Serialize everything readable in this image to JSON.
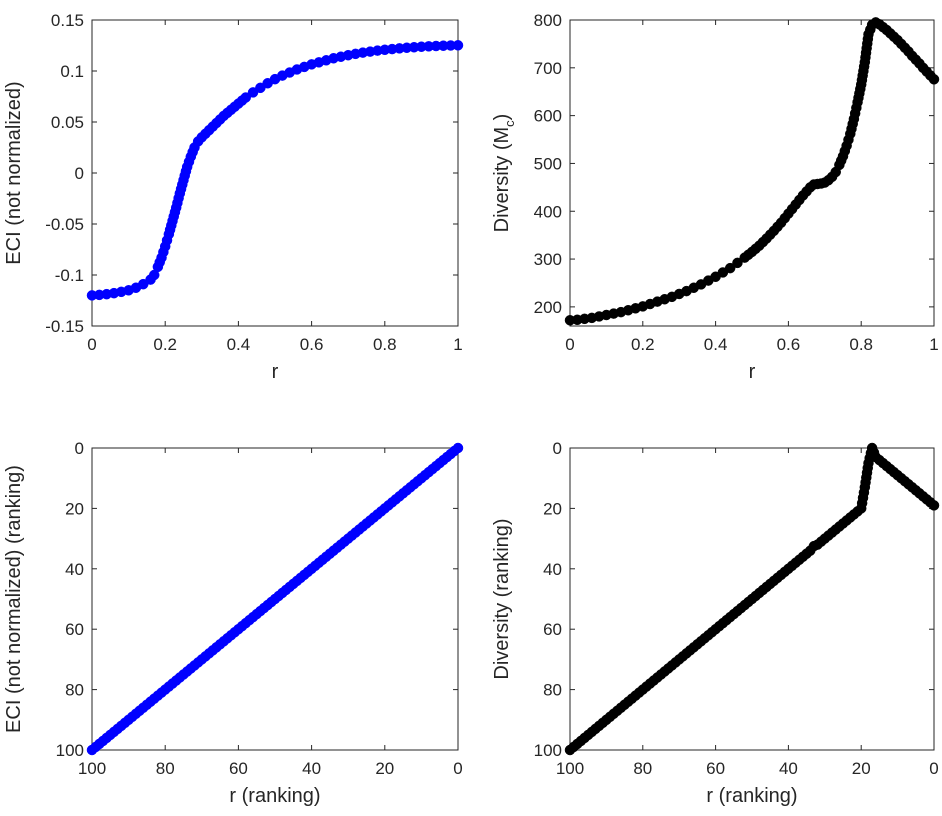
{
  "chart_data": [
    {
      "id": "eci",
      "type": "scatter",
      "xlabel": "r",
      "ylabel": "ECI (not normalized)",
      "xlim": [
        0,
        1
      ],
      "ylim": [
        -0.15,
        0.15
      ],
      "x_reversed": false,
      "y_reversed": false,
      "xticks": [
        0,
        0.2,
        0.4,
        0.6,
        0.8,
        1
      ],
      "xtick_labels": [
        "0",
        "0.2",
        "0.4",
        "0.6",
        "0.8",
        "1"
      ],
      "yticks": [
        -0.15,
        -0.1,
        -0.05,
        0,
        0.05,
        0.1,
        0.15
      ],
      "ytick_labels": [
        "-0.15",
        "-0.1",
        "-0.05",
        "0",
        "0.05",
        "0.1",
        "0.15"
      ],
      "marker_color": "#0000ff",
      "series": [
        {
          "name": "ECI",
          "points": [
            [
              0,
              -0.12
            ],
            [
              0.02,
              -0.1195
            ],
            [
              0.04,
              -0.1188
            ],
            [
              0.06,
              -0.1178
            ],
            [
              0.08,
              -0.1165
            ],
            [
              0.1,
              -0.115
            ],
            [
              0.12,
              -0.1125
            ],
            [
              0.14,
              -0.109
            ],
            [
              0.16,
              -0.1045
            ],
            [
              0.17,
              -0.1
            ],
            [
              0.18,
              -0.092
            ],
            [
              0.19,
              -0.083
            ],
            [
              0.2,
              -0.072
            ],
            [
              0.21,
              -0.06
            ],
            [
              0.22,
              -0.047
            ],
            [
              0.23,
              -0.034
            ],
            [
              0.24,
              -0.02
            ],
            [
              0.25,
              -0.007
            ],
            [
              0.26,
              0.006
            ],
            [
              0.27,
              0.016
            ],
            [
              0.28,
              0.025
            ],
            [
              0.29,
              0.031
            ],
            [
              0.3,
              0.035
            ],
            [
              0.32,
              0.042
            ],
            [
              0.34,
              0.049
            ],
            [
              0.36,
              0.056
            ],
            [
              0.38,
              0.062
            ],
            [
              0.4,
              0.068
            ],
            [
              0.42,
              0.074
            ],
            [
              0.44,
              0.079
            ],
            [
              0.46,
              0.0835
            ],
            [
              0.48,
              0.088
            ],
            [
              0.5,
              0.092
            ],
            [
              0.52,
              0.0955
            ],
            [
              0.54,
              0.0985
            ],
            [
              0.56,
              0.1015
            ],
            [
              0.58,
              0.104
            ],
            [
              0.6,
              0.1065
            ],
            [
              0.62,
              0.1085
            ],
            [
              0.64,
              0.1105
            ],
            [
              0.66,
              0.1125
            ],
            [
              0.68,
              0.114
            ],
            [
              0.7,
              0.1155
            ],
            [
              0.72,
              0.1168
            ],
            [
              0.74,
              0.118
            ],
            [
              0.76,
              0.119
            ],
            [
              0.78,
              0.12
            ],
            [
              0.8,
              0.1208
            ],
            [
              0.82,
              0.1215
            ],
            [
              0.84,
              0.1222
            ],
            [
              0.86,
              0.1228
            ],
            [
              0.88,
              0.1233
            ],
            [
              0.9,
              0.1238
            ],
            [
              0.92,
              0.1242
            ],
            [
              0.94,
              0.1245
            ],
            [
              0.96,
              0.1248
            ],
            [
              0.98,
              0.125
            ],
            [
              1,
              0.1252
            ]
          ]
        }
      ]
    },
    {
      "id": "diversity",
      "type": "scatter",
      "xlabel": "r",
      "ylabel": "Diversity (M",
      "ylabel_subscript": "c",
      "ylabel_suffix": ")",
      "xlim": [
        0,
        1
      ],
      "ylim": [
        160,
        800
      ],
      "x_reversed": false,
      "y_reversed": false,
      "xticks": [
        0,
        0.2,
        0.4,
        0.6,
        0.8,
        1
      ],
      "xtick_labels": [
        "0",
        "0.2",
        "0.4",
        "0.6",
        "0.8",
        "1"
      ],
      "yticks": [
        200,
        300,
        400,
        500,
        600,
        700,
        800
      ],
      "ytick_labels": [
        "200",
        "300",
        "400",
        "500",
        "600",
        "700",
        "800"
      ],
      "marker_color": "#000000",
      "series": [
        {
          "name": "Diversity",
          "points": [
            [
              0,
              172
            ],
            [
              0.02,
              173
            ],
            [
              0.04,
              175
            ],
            [
              0.06,
              177
            ],
            [
              0.08,
              180
            ],
            [
              0.1,
              183
            ],
            [
              0.12,
              186
            ],
            [
              0.14,
              189
            ],
            [
              0.16,
              193
            ],
            [
              0.18,
              197
            ],
            [
              0.2,
              201
            ],
            [
              0.22,
              206
            ],
            [
              0.24,
              211
            ],
            [
              0.26,
              216
            ],
            [
              0.28,
              221
            ],
            [
              0.3,
              227
            ],
            [
              0.32,
              233
            ],
            [
              0.34,
              240
            ],
            [
              0.36,
              247
            ],
            [
              0.38,
              255
            ],
            [
              0.4,
              263
            ],
            [
              0.42,
              272
            ],
            [
              0.44,
              281
            ],
            [
              0.46,
              292
            ],
            [
              0.48,
              303
            ],
            [
              0.5,
              315
            ],
            [
              0.52,
              328
            ],
            [
              0.54,
              343
            ],
            [
              0.56,
              359
            ],
            [
              0.58,
              376
            ],
            [
              0.6,
              395
            ],
            [
              0.62,
              414
            ],
            [
              0.64,
              433
            ],
            [
              0.66,
              450
            ],
            [
              0.67,
              456
            ],
            [
              0.68,
              457
            ],
            [
              0.69,
              458
            ],
            [
              0.7,
              460
            ],
            [
              0.71,
              465
            ],
            [
              0.72,
              472
            ],
            [
              0.73,
              482
            ],
            [
              0.74,
              497
            ],
            [
              0.75,
              515
            ],
            [
              0.76,
              537
            ],
            [
              0.77,
              562
            ],
            [
              0.78,
              593
            ],
            [
              0.79,
              628
            ],
            [
              0.8,
              665
            ],
            [
              0.81,
              712
            ],
            [
              0.82,
              770
            ],
            [
              0.83,
              790
            ],
            [
              0.84,
              795
            ],
            [
              0.85,
              791
            ],
            [
              0.86,
              785
            ],
            [
              0.87,
              779
            ],
            [
              0.88,
              772
            ],
            [
              0.89,
              765
            ],
            [
              0.9,
              758
            ],
            [
              0.91,
              750
            ],
            [
              0.92,
              742
            ],
            [
              0.93,
              734
            ],
            [
              0.94,
              725
            ],
            [
              0.95,
              717
            ],
            [
              0.96,
              709
            ],
            [
              0.97,
              700
            ],
            [
              0.98,
              692
            ],
            [
              0.99,
              684
            ],
            [
              1,
              676
            ]
          ]
        }
      ]
    },
    {
      "id": "eci-ranking",
      "type": "scatter",
      "xlabel": "r (ranking)",
      "ylabel": "ECI (not normalized) (ranking)",
      "xlim": [
        0,
        100
      ],
      "ylim": [
        0,
        100
      ],
      "x_reversed": true,
      "y_reversed": true,
      "xticks": [
        100,
        80,
        60,
        40,
        20,
        0
      ],
      "xtick_labels": [
        "100",
        "80",
        "60",
        "40",
        "20",
        "0"
      ],
      "yticks": [
        0,
        20,
        40,
        60,
        80,
        100
      ],
      "ytick_labels": [
        "0",
        "20",
        "40",
        "60",
        "80",
        "100"
      ],
      "marker_color": "#0000ff",
      "series": [
        {
          "name": "ECI ranking",
          "points": [
            [
              0,
              0
            ],
            [
              2,
              2
            ],
            [
              4,
              4
            ],
            [
              6,
              6
            ],
            [
              8,
              8
            ],
            [
              10,
              10
            ],
            [
              12,
              12
            ],
            [
              14,
              14
            ],
            [
              16,
              16
            ],
            [
              18,
              18
            ],
            [
              20,
              20
            ],
            [
              22,
              22
            ],
            [
              24,
              24
            ],
            [
              26,
              26
            ],
            [
              28,
              28
            ],
            [
              30,
              30
            ],
            [
              32,
              32
            ],
            [
              34,
              34
            ],
            [
              36,
              36
            ],
            [
              38,
              38
            ],
            [
              40,
              40
            ],
            [
              42,
              42
            ],
            [
              44,
              44
            ],
            [
              46,
              46
            ],
            [
              48,
              48
            ],
            [
              50,
              50
            ],
            [
              52,
              52
            ],
            [
              54,
              54
            ],
            [
              56,
              56
            ],
            [
              58,
              58
            ],
            [
              60,
              60
            ],
            [
              62,
              62
            ],
            [
              64,
              64
            ],
            [
              66,
              66
            ],
            [
              68,
              68
            ],
            [
              70,
              70
            ],
            [
              72,
              72
            ],
            [
              74,
              74
            ],
            [
              76,
              76
            ],
            [
              78,
              78
            ],
            [
              80,
              80
            ],
            [
              82,
              82
            ],
            [
              84,
              84
            ],
            [
              86,
              86
            ],
            [
              88,
              88
            ],
            [
              90,
              90
            ],
            [
              92,
              92
            ],
            [
              94,
              94
            ],
            [
              96,
              96
            ],
            [
              98,
              98
            ],
            [
              100,
              100
            ]
          ]
        }
      ]
    },
    {
      "id": "diversity-ranking",
      "type": "scatter",
      "xlabel": "r (ranking)",
      "ylabel": "Diversity (ranking)",
      "xlim": [
        0,
        100
      ],
      "ylim": [
        0,
        100
      ],
      "x_reversed": true,
      "y_reversed": true,
      "xticks": [
        100,
        80,
        60,
        40,
        20,
        0
      ],
      "xtick_labels": [
        "100",
        "80",
        "60",
        "40",
        "20",
        "0"
      ],
      "yticks": [
        0,
        20,
        40,
        60,
        80,
        100
      ],
      "ytick_labels": [
        "0",
        "20",
        "40",
        "60",
        "80",
        "100"
      ],
      "marker_color": "#000000",
      "series": [
        {
          "name": "Diversity ranking",
          "points": [
            [
              0,
              19
            ],
            [
              1,
              18
            ],
            [
              2,
              17
            ],
            [
              3,
              16
            ],
            [
              4,
              15
            ],
            [
              5,
              14
            ],
            [
              6,
              13
            ],
            [
              7,
              12
            ],
            [
              8,
              11
            ],
            [
              9,
              10
            ],
            [
              10,
              9
            ],
            [
              11,
              8
            ],
            [
              12,
              7
            ],
            [
              13,
              6
            ],
            [
              14,
              5
            ],
            [
              15,
              4
            ],
            [
              16,
              3
            ],
            [
              17,
              0
            ],
            [
              18,
              5
            ],
            [
              19,
              13
            ],
            [
              20,
              20
            ],
            [
              22,
              22
            ],
            [
              24,
              24
            ],
            [
              26,
              26
            ],
            [
              28,
              28
            ],
            [
              30,
              30
            ],
            [
              32,
              32
            ],
            [
              33,
              32.5
            ],
            [
              34,
              34
            ],
            [
              36,
              36
            ],
            [
              38,
              38
            ],
            [
              40,
              40
            ],
            [
              42,
              42
            ],
            [
              44,
              44
            ],
            [
              46,
              46
            ],
            [
              48,
              48
            ],
            [
              50,
              50
            ],
            [
              52,
              52
            ],
            [
              54,
              54
            ],
            [
              56,
              56
            ],
            [
              58,
              58
            ],
            [
              60,
              60
            ],
            [
              62,
              62
            ],
            [
              64,
              64
            ],
            [
              66,
              66
            ],
            [
              68,
              68
            ],
            [
              70,
              70
            ],
            [
              72,
              72
            ],
            [
              74,
              74
            ],
            [
              76,
              76
            ],
            [
              78,
              78
            ],
            [
              80,
              80
            ],
            [
              82,
              82
            ],
            [
              84,
              84
            ],
            [
              86,
              86
            ],
            [
              88,
              88
            ],
            [
              90,
              90
            ],
            [
              92,
              92
            ],
            [
              94,
              94
            ],
            [
              96,
              96
            ],
            [
              98,
              98
            ],
            [
              100,
              100
            ]
          ]
        }
      ]
    }
  ]
}
